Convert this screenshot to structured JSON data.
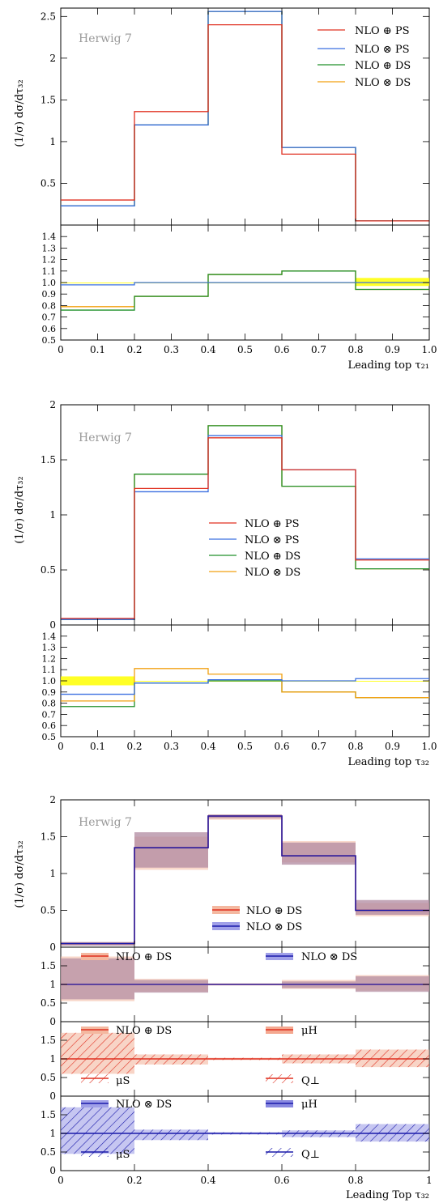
{
  "colors": {
    "red": "#e03020",
    "blue": "#3a6fe0",
    "green": "#20902a",
    "orange": "#f2a010",
    "navy": "#1a1aaa",
    "band_red": "#f4b8a0",
    "band_mauve": "#b08aa0",
    "band_blue": "#a0a0e8",
    "yellow": "#ffff00"
  },
  "chart_data": [
    {
      "type": "line",
      "step": true,
      "watermark": "Herwig 7",
      "ylabel": "(1/σ) dσ/dτ₃₂",
      "xlabel": "Leading top τ₂₁",
      "edges": [
        0,
        0.2,
        0.4,
        0.6,
        0.8,
        1.0
      ],
      "ylim": [
        0,
        2.6
      ],
      "yticks": [
        "0.5",
        "1",
        "1.5",
        "2",
        "2.5"
      ],
      "ytick_values": [
        0.5,
        1,
        1.5,
        2,
        2.5
      ],
      "legend_position": "top-right",
      "series": [
        {
          "name": "NLO ⊕ PS",
          "color": "red",
          "values": [
            0.3,
            1.36,
            2.4,
            0.85,
            0.05
          ]
        },
        {
          "name": "NLO ⊗ PS",
          "color": "blue",
          "values": [
            0.23,
            1.2,
            2.56,
            0.93,
            0.05
          ]
        },
        {
          "name": "NLO ⊕ DS",
          "color": "green",
          "values": [
            0.23,
            1.2,
            2.56,
            0.93,
            0.05
          ]
        },
        {
          "name": "NLO ⊗ DS",
          "color": "orange",
          "values": [
            0.23,
            1.2,
            2.56,
            0.93,
            0.05
          ]
        }
      ],
      "ratio": {
        "ylim": [
          0.5,
          1.5
        ],
        "yticks": [
          "0.5",
          "0.6",
          "0.7",
          "0.8",
          "0.9",
          "1.0",
          "1.1",
          "1.2",
          "1.3",
          "1.4"
        ],
        "ytick_values": [
          0.5,
          0.6,
          0.7,
          0.8,
          0.9,
          1.0,
          1.1,
          1.2,
          1.3,
          1.4
        ],
        "xticks": [
          "0",
          "0.1",
          "0.2",
          "0.3",
          "0.4",
          "0.5",
          "0.6",
          "0.7",
          "0.8",
          "0.9",
          "1.0"
        ],
        "band": {
          "values": [
            [
              1,
              1
            ],
            [
              1,
              1
            ],
            [
              1,
              1
            ],
            [
              1,
              1
            ],
            [
              0.97,
              1.04
            ]
          ],
          "color": "yellow"
        },
        "series": [
          {
            "color": "orange",
            "values": [
              0.79,
              0.88,
              1.07,
              1.1,
              0.94
            ]
          },
          {
            "color": "green",
            "values": [
              0.76,
              0.88,
              1.07,
              1.1,
              0.94
            ]
          },
          {
            "color": "blue",
            "values": [
              0.98,
              1.0,
              1.0,
              1.0,
              1.0
            ]
          }
        ]
      }
    },
    {
      "type": "line",
      "step": true,
      "watermark": "Herwig 7",
      "ylabel": "(1/σ) dσ/dτ₃₂",
      "xlabel": "Leading top τ₃₂",
      "edges": [
        0,
        0.2,
        0.4,
        0.6,
        0.8,
        1.0
      ],
      "ylim": [
        0,
        2.0
      ],
      "yticks": [
        "0",
        "0.5",
        "1",
        "1.5",
        "2"
      ],
      "ytick_values": [
        0,
        0.5,
        1,
        1.5,
        2
      ],
      "legend_position": "middle",
      "series": [
        {
          "name": "NLO ⊕ PS",
          "color": "red",
          "values": [
            0.06,
            1.24,
            1.7,
            1.41,
            0.59
          ]
        },
        {
          "name": "NLO ⊗ PS",
          "color": "blue",
          "values": [
            0.05,
            1.21,
            1.72,
            1.41,
            0.6
          ]
        },
        {
          "name": "NLO ⊕ DS",
          "color": "green",
          "values": [
            0.05,
            1.37,
            1.81,
            1.26,
            0.51
          ]
        },
        {
          "name": "NLO ⊗ DS",
          "color": "orange",
          "values": [
            0.05,
            1.37,
            1.81,
            1.26,
            0.51
          ]
        }
      ],
      "ratio": {
        "ylim": [
          0.5,
          1.5
        ],
        "yticks": [
          "0.5",
          "0.6",
          "0.7",
          "0.8",
          "0.9",
          "1.0",
          "1.1",
          "1.2",
          "1.3",
          "1.4"
        ],
        "ytick_values": [
          0.5,
          0.6,
          0.7,
          0.8,
          0.9,
          1.0,
          1.1,
          1.2,
          1.3,
          1.4
        ],
        "xticks": [
          "0",
          "0.1",
          "0.2",
          "0.3",
          "0.4",
          "0.5",
          "0.6",
          "0.7",
          "0.8",
          "0.9",
          "1.0"
        ],
        "band": {
          "values": [
            [
              0.96,
              1.04
            ],
            [
              1,
              1
            ],
            [
              1,
              1
            ],
            [
              1,
              1
            ],
            [
              1,
              1
            ]
          ],
          "color": "yellow"
        },
        "series": [
          {
            "color": "green",
            "values": [
              0.77,
              0.98,
              1.0,
              0.9,
              0.85
            ]
          },
          {
            "color": "orange",
            "values": [
              0.82,
              1.11,
              1.06,
              0.9,
              0.85
            ]
          },
          {
            "color": "blue",
            "values": [
              0.88,
              0.98,
              1.01,
              1.0,
              1.02
            ]
          }
        ]
      }
    },
    {
      "type": "line",
      "step": true,
      "watermark": "Herwig 7",
      "ylabel": "(1/σ) dσ/dτ₃₂",
      "xlabel": "Leading Top τ₃₂",
      "edges": [
        0,
        0.2,
        0.4,
        0.6,
        0.8,
        1.0
      ],
      "ylim": [
        0,
        2.0
      ],
      "yticks": [
        "0",
        "0.5",
        "1",
        "1.5",
        "2"
      ],
      "ytick_values": [
        0,
        0.5,
        1,
        1.5,
        2
      ],
      "xticks": [
        "0",
        "0.2",
        "0.4",
        "0.6",
        "0.8",
        "1"
      ],
      "series": [
        {
          "name": "NLO ⊕ DS",
          "color": "red",
          "values": [
            0.05,
            1.35,
            1.78,
            1.24,
            0.5
          ],
          "band": [
            [
              0.03,
              0.06
            ],
            [
              1.05,
              1.5
            ],
            [
              1.73,
              1.8
            ],
            [
              1.15,
              1.44
            ],
            [
              0.42,
              0.6
            ]
          ]
        },
        {
          "name": "NLO ⊗ DS",
          "color": "navy",
          "values": [
            0.05,
            1.35,
            1.78,
            1.24,
            0.5
          ],
          "band": [
            [
              0.02,
              0.07
            ],
            [
              1.08,
              1.56
            ],
            [
              1.75,
              1.8
            ],
            [
              1.12,
              1.42
            ],
            [
              0.44,
              0.64
            ]
          ]
        }
      ],
      "ratio1": {
        "ylim": [
          0,
          2.0
        ],
        "yticks": [
          "0",
          "0.5",
          "1",
          "1.5"
        ],
        "ytick_values": [
          0,
          0.5,
          1,
          1.5
        ],
        "labels": [
          "NLO ⊕ DS",
          "NLO ⊗ DS"
        ],
        "band": [
          [
            0.55,
            1.75
          ],
          [
            0.8,
            1.15
          ],
          [
            0.97,
            1.03
          ],
          [
            0.88,
            1.12
          ],
          [
            0.83,
            1.25
          ]
        ],
        "band2": [
          [
            0.6,
            1.7
          ],
          [
            0.78,
            1.12
          ],
          [
            0.98,
            1.02
          ],
          [
            0.9,
            1.08
          ],
          [
            0.8,
            1.22
          ]
        ]
      },
      "ratio2": {
        "ylim": [
          0,
          2.0
        ],
        "yticks": [
          "0",
          "0.5",
          "1",
          "1.5"
        ],
        "ytick_values": [
          0,
          0.5,
          1,
          1.5
        ],
        "labels": {
          "title": "NLO ⊕ DS",
          "muH": "μH",
          "muS": "μS",
          "Qperp": "Q⊥"
        },
        "band": [
          [
            0.6,
            1.7
          ],
          [
            0.85,
            1.12
          ],
          [
            0.97,
            1.03
          ],
          [
            0.88,
            1.12
          ],
          [
            0.78,
            1.25
          ]
        ]
      },
      "ratio3": {
        "ylim": [
          0,
          2.0
        ],
        "yticks": [
          "0",
          "0.5",
          "1",
          "1.5"
        ],
        "ytick_values": [
          0,
          0.5,
          1,
          1.5
        ],
        "labels": {
          "title": "NLO ⊗ DS",
          "muH": "μH",
          "muS": "μS",
          "Qperp": "Q⊥"
        },
        "band": [
          [
            0.45,
            1.7
          ],
          [
            0.82,
            1.1
          ],
          [
            0.97,
            1.03
          ],
          [
            0.9,
            1.08
          ],
          [
            0.78,
            1.25
          ]
        ]
      }
    }
  ]
}
